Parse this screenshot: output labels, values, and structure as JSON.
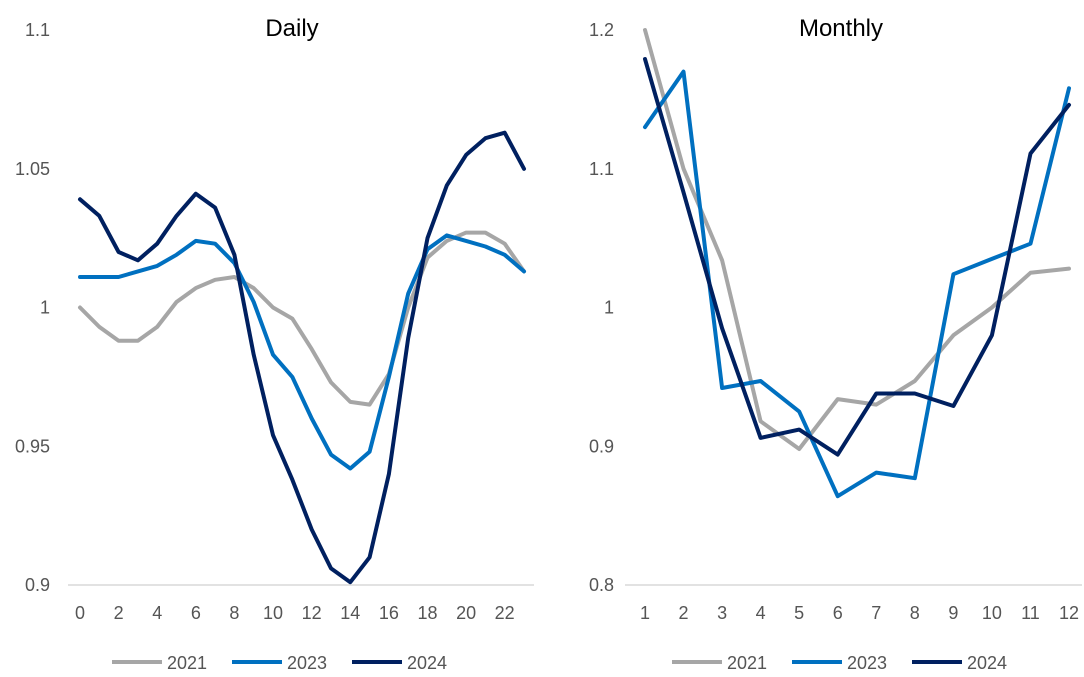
{
  "colors": {
    "s2021": "#A6A6A6",
    "s2023": "#0070C0",
    "s2024": "#002060",
    "axis": "#D9D9D9",
    "text": "#595959"
  },
  "chart_data": [
    {
      "type": "line",
      "title": "Daily",
      "xlabel": "",
      "ylabel": "",
      "x": [
        0,
        1,
        2,
        3,
        4,
        5,
        6,
        7,
        8,
        9,
        10,
        11,
        12,
        13,
        14,
        15,
        16,
        17,
        18,
        19,
        20,
        21,
        22,
        23
      ],
      "xticks": [
        "0",
        "2",
        "4",
        "6",
        "8",
        "10",
        "12",
        "14",
        "16",
        "18",
        "20",
        "22"
      ],
      "ylim": [
        0.9,
        1.1
      ],
      "yticks": [
        "0.9",
        "0.95",
        "1",
        "1.05",
        "1.1"
      ],
      "grid": false,
      "legend": "bottom",
      "series": [
        {
          "name": "2021",
          "values": [
            1.0,
            0.993,
            0.988,
            0.988,
            0.993,
            1.002,
            1.007,
            1.01,
            1.011,
            1.007,
            1.0,
            0.996,
            0.985,
            0.973,
            0.966,
            0.965,
            0.976,
            1.0,
            1.018,
            1.024,
            1.027,
            1.027,
            1.023,
            1.013
          ]
        },
        {
          "name": "2023",
          "values": [
            1.011,
            1.011,
            1.011,
            1.013,
            1.015,
            1.019,
            1.024,
            1.023,
            1.016,
            1.002,
            0.983,
            0.975,
            0.96,
            0.947,
            0.942,
            0.948,
            0.975,
            1.005,
            1.021,
            1.026,
            1.024,
            1.022,
            1.019,
            1.013
          ]
        },
        {
          "name": "2024",
          "values": [
            1.039,
            1.033,
            1.02,
            1.017,
            1.023,
            1.033,
            1.041,
            1.036,
            1.019,
            0.983,
            0.954,
            0.938,
            0.92,
            0.906,
            0.901,
            0.91,
            0.94,
            0.989,
            1.025,
            1.044,
            1.055,
            1.061,
            1.063,
            1.05
          ]
        }
      ]
    },
    {
      "type": "line",
      "title": "Monthly",
      "xlabel": "",
      "ylabel": "",
      "x": [
        1,
        2,
        3,
        4,
        5,
        6,
        7,
        8,
        9,
        10,
        11,
        12
      ],
      "xticks": [
        "1",
        "2",
        "3",
        "4",
        "5",
        "6",
        "7",
        "8",
        "9",
        "10",
        "11",
        "12"
      ],
      "ylim": [
        0.8,
        1.2
      ],
      "yticks": [
        "0.8",
        "0.9",
        "1",
        "1.1",
        "1.2"
      ],
      "grid": false,
      "legend": "bottom",
      "series": [
        {
          "name": "2021",
          "values": [
            1.2,
            1.1,
            1.034,
            0.918,
            0.898,
            0.934,
            0.93,
            0.947,
            0.98,
            1.0,
            1.025,
            1.028
          ]
        },
        {
          "name": "2023",
          "values": [
            1.13,
            1.17,
            0.942,
            0.947,
            0.925,
            0.864,
            0.881,
            0.877,
            1.024,
            1.035,
            1.046,
            1.158
          ]
        },
        {
          "name": "2024",
          "values": [
            1.179,
            1.083,
            0.985,
            0.906,
            0.912,
            0.894,
            0.938,
            0.938,
            0.929,
            0.98,
            1.111,
            1.146
          ]
        }
      ]
    }
  ]
}
